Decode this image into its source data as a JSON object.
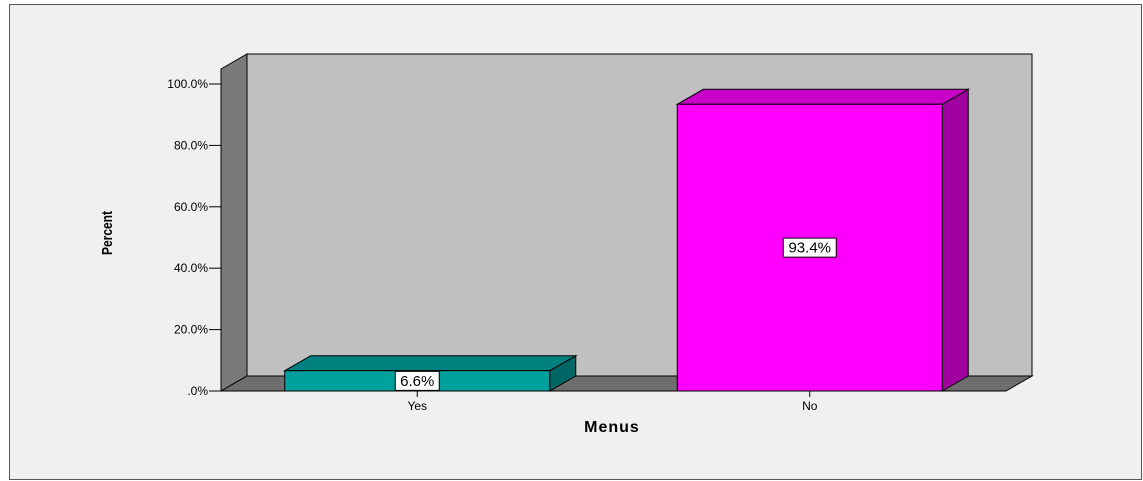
{
  "chart_data": {
    "type": "bar",
    "title": "",
    "categories": [
      "Yes",
      "No"
    ],
    "values": [
      6.6,
      93.4
    ],
    "data_labels": [
      "6.6%",
      "93.4%"
    ],
    "xlabel": "Menus",
    "ylabel": "Percent",
    "ylim": [
      0,
      100
    ],
    "yticks": [
      0,
      20,
      40,
      60,
      80,
      100
    ],
    "ytick_labels": [
      ".0%",
      "20.0%",
      "40.0%",
      "60.0%",
      "80.0%",
      "100.0%"
    ],
    "grid": false,
    "style": "3d",
    "colors": {
      "bars": [
        "#00a09e",
        "#ff00ff"
      ],
      "bar_sides": [
        "#006766",
        "#a000a0"
      ],
      "bar_tops": [
        "#00807e",
        "#c800c8"
      ],
      "wall_back": "#c0c0c0",
      "wall_side": "#7a7a7a",
      "floor": "#6e6e6e",
      "background": "#f0f0f0"
    }
  }
}
